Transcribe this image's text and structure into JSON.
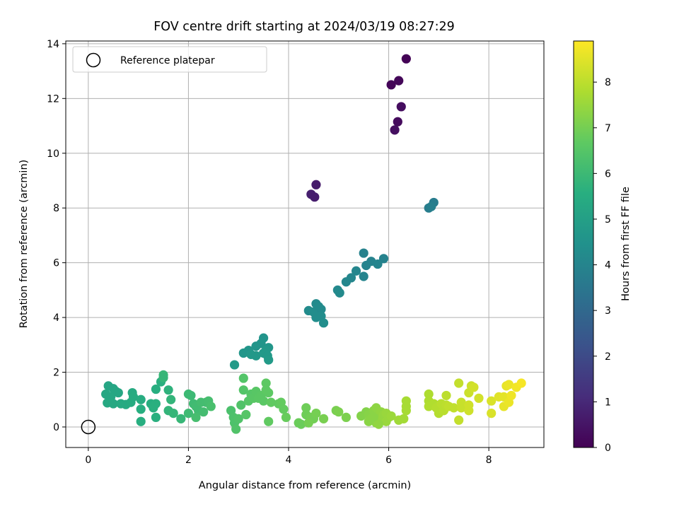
{
  "chart_data": {
    "type": "scatter",
    "title": "FOV centre drift starting at 2024/03/19 08:27:29",
    "xlabel": "Angular distance from reference (arcmin)",
    "ylabel": "Rotation from reference (arcmin)",
    "xlim": [
      -0.45,
      9.1
    ],
    "ylim": [
      -0.75,
      14.1
    ],
    "xticks": [
      0,
      2,
      4,
      6,
      8
    ],
    "yticks": [
      0,
      2,
      4,
      6,
      8,
      10,
      12,
      14
    ],
    "grid": true,
    "legend": {
      "placement": "top-left",
      "entries": [
        "Reference platepar"
      ]
    },
    "reference_point": {
      "x": 0,
      "y": 0,
      "label": "Reference platepar"
    },
    "colorbar": {
      "label": "Hours from first FF file",
      "colormap": "viridis",
      "range": [
        0,
        8.9
      ],
      "ticks": [
        0,
        1,
        2,
        3,
        4,
        5,
        6,
        7,
        8
      ]
    },
    "points": [
      {
        "x": 6.35,
        "y": 13.45,
        "t": 0.05
      },
      {
        "x": 6.2,
        "y": 12.65,
        "t": 0.15
      },
      {
        "x": 6.05,
        "y": 12.5,
        "t": 0.1
      },
      {
        "x": 6.25,
        "y": 11.7,
        "t": 0.3
      },
      {
        "x": 6.18,
        "y": 11.15,
        "t": 0.25
      },
      {
        "x": 6.12,
        "y": 10.85,
        "t": 0.35
      },
      {
        "x": 4.55,
        "y": 8.85,
        "t": 0.65
      },
      {
        "x": 4.45,
        "y": 8.5,
        "t": 0.75
      },
      {
        "x": 4.52,
        "y": 8.4,
        "t": 0.7
      },
      {
        "x": 6.9,
        "y": 8.2,
        "t": 3.7
      },
      {
        "x": 6.8,
        "y": 8.0,
        "t": 3.75
      },
      {
        "x": 6.85,
        "y": 8.05,
        "t": 3.8
      },
      {
        "x": 5.5,
        "y": 6.35,
        "t": 3.9
      },
      {
        "x": 5.65,
        "y": 6.05,
        "t": 3.95
      },
      {
        "x": 5.9,
        "y": 6.15,
        "t": 3.9
      },
      {
        "x": 5.55,
        "y": 5.9,
        "t": 3.95
      },
      {
        "x": 5.78,
        "y": 5.95,
        "t": 4.0
      },
      {
        "x": 5.35,
        "y": 5.7,
        "t": 4.05
      },
      {
        "x": 5.25,
        "y": 5.45,
        "t": 4.05
      },
      {
        "x": 5.5,
        "y": 5.5,
        "t": 4.0
      },
      {
        "x": 5.15,
        "y": 5.3,
        "t": 4.1
      },
      {
        "x": 4.98,
        "y": 5.0,
        "t": 4.15
      },
      {
        "x": 5.02,
        "y": 4.9,
        "t": 4.2
      },
      {
        "x": 4.55,
        "y": 4.5,
        "t": 4.2
      },
      {
        "x": 4.4,
        "y": 4.25,
        "t": 4.25
      },
      {
        "x": 4.5,
        "y": 4.2,
        "t": 4.3
      },
      {
        "x": 4.65,
        "y": 4.3,
        "t": 4.2
      },
      {
        "x": 4.6,
        "y": 4.4,
        "t": 4.25
      },
      {
        "x": 4.55,
        "y": 4.0,
        "t": 4.3
      },
      {
        "x": 4.65,
        "y": 4.05,
        "t": 4.3
      },
      {
        "x": 4.7,
        "y": 3.8,
        "t": 4.35
      },
      {
        "x": 3.5,
        "y": 3.25,
        "t": 4.55
      },
      {
        "x": 3.45,
        "y": 3.05,
        "t": 4.6
      },
      {
        "x": 3.35,
        "y": 2.95,
        "t": 4.6
      },
      {
        "x": 3.6,
        "y": 2.9,
        "t": 4.65
      },
      {
        "x": 3.55,
        "y": 2.8,
        "t": 4.7
      },
      {
        "x": 3.2,
        "y": 2.8,
        "t": 4.6
      },
      {
        "x": 3.1,
        "y": 2.7,
        "t": 4.65
      },
      {
        "x": 3.25,
        "y": 2.65,
        "t": 4.7
      },
      {
        "x": 3.35,
        "y": 2.6,
        "t": 4.7
      },
      {
        "x": 3.5,
        "y": 2.7,
        "t": 4.75
      },
      {
        "x": 3.58,
        "y": 2.6,
        "t": 4.75
      },
      {
        "x": 3.6,
        "y": 2.45,
        "t": 4.8
      },
      {
        "x": 2.92,
        "y": 2.27,
        "t": 4.8
      },
      {
        "x": 0.4,
        "y": 1.5,
        "t": 5.2
      },
      {
        "x": 0.5,
        "y": 1.4,
        "t": 5.2
      },
      {
        "x": 0.55,
        "y": 1.3,
        "t": 5.25
      },
      {
        "x": 0.35,
        "y": 1.2,
        "t": 5.3
      },
      {
        "x": 0.45,
        "y": 1.1,
        "t": 5.3
      },
      {
        "x": 0.6,
        "y": 1.25,
        "t": 5.25
      },
      {
        "x": 0.38,
        "y": 0.88,
        "t": 5.35
      },
      {
        "x": 0.5,
        "y": 0.85,
        "t": 5.35
      },
      {
        "x": 0.65,
        "y": 0.85,
        "t": 5.4
      },
      {
        "x": 0.75,
        "y": 0.82,
        "t": 5.4
      },
      {
        "x": 0.85,
        "y": 0.9,
        "t": 5.45
      },
      {
        "x": 0.88,
        "y": 1.25,
        "t": 5.4
      },
      {
        "x": 0.9,
        "y": 1.1,
        "t": 5.45
      },
      {
        "x": 1.05,
        "y": 1.0,
        "t": 5.5
      },
      {
        "x": 1.05,
        "y": 0.65,
        "t": 5.55
      },
      {
        "x": 1.05,
        "y": 0.2,
        "t": 5.55
      },
      {
        "x": 1.25,
        "y": 0.85,
        "t": 5.55
      },
      {
        "x": 1.3,
        "y": 0.7,
        "t": 5.6
      },
      {
        "x": 1.35,
        "y": 0.85,
        "t": 5.6
      },
      {
        "x": 1.35,
        "y": 0.35,
        "t": 5.6
      },
      {
        "x": 1.35,
        "y": 1.38,
        "t": 5.55
      },
      {
        "x": 1.45,
        "y": 1.65,
        "t": 5.6
      },
      {
        "x": 1.5,
        "y": 1.9,
        "t": 5.9
      },
      {
        "x": 1.5,
        "y": 1.8,
        "t": 5.85
      },
      {
        "x": 1.6,
        "y": 1.35,
        "t": 5.7
      },
      {
        "x": 1.6,
        "y": 0.6,
        "t": 5.8
      },
      {
        "x": 1.65,
        "y": 1.0,
        "t": 5.8
      },
      {
        "x": 1.7,
        "y": 0.5,
        "t": 5.85
      },
      {
        "x": 1.85,
        "y": 0.3,
        "t": 5.9
      },
      {
        "x": 2.0,
        "y": 1.2,
        "t": 6.0
      },
      {
        "x": 2.05,
        "y": 1.15,
        "t": 6.0
      },
      {
        "x": 2.0,
        "y": 0.5,
        "t": 6.05
      },
      {
        "x": 2.1,
        "y": 0.85,
        "t": 6.05
      },
      {
        "x": 2.15,
        "y": 0.75,
        "t": 6.1
      },
      {
        "x": 2.2,
        "y": 0.6,
        "t": 6.1
      },
      {
        "x": 2.25,
        "y": 0.9,
        "t": 6.15
      },
      {
        "x": 2.3,
        "y": 0.55,
        "t": 6.15
      },
      {
        "x": 2.35,
        "y": 0.9,
        "t": 6.15
      },
      {
        "x": 2.15,
        "y": 0.35,
        "t": 6.2
      },
      {
        "x": 2.4,
        "y": 0.95,
        "t": 6.2
      },
      {
        "x": 2.45,
        "y": 0.75,
        "t": 6.25
      },
      {
        "x": 2.85,
        "y": 0.6,
        "t": 6.3
      },
      {
        "x": 2.9,
        "y": 0.35,
        "t": 6.35
      },
      {
        "x": 2.92,
        "y": 0.15,
        "t": 6.35
      },
      {
        "x": 2.95,
        "y": -0.08,
        "t": 6.4
      },
      {
        "x": 3.0,
        "y": 0.3,
        "t": 6.4
      },
      {
        "x": 3.05,
        "y": 0.8,
        "t": 6.4
      },
      {
        "x": 3.1,
        "y": 1.78,
        "t": 6.45
      },
      {
        "x": 3.1,
        "y": 1.35,
        "t": 6.45
      },
      {
        "x": 3.15,
        "y": 0.45,
        "t": 6.5
      },
      {
        "x": 3.2,
        "y": 0.95,
        "t": 6.5
      },
      {
        "x": 3.25,
        "y": 1.2,
        "t": 6.5
      },
      {
        "x": 3.3,
        "y": 1.05,
        "t": 6.55
      },
      {
        "x": 3.35,
        "y": 1.3,
        "t": 6.55
      },
      {
        "x": 3.4,
        "y": 1.05,
        "t": 6.6
      },
      {
        "x": 3.45,
        "y": 1.15,
        "t": 6.6
      },
      {
        "x": 3.5,
        "y": 0.95,
        "t": 6.6
      },
      {
        "x": 3.55,
        "y": 1.6,
        "t": 6.65
      },
      {
        "x": 3.6,
        "y": 1.25,
        "t": 6.65
      },
      {
        "x": 3.55,
        "y": 1.35,
        "t": 6.65
      },
      {
        "x": 3.65,
        "y": 0.9,
        "t": 6.7
      },
      {
        "x": 3.6,
        "y": 0.2,
        "t": 6.7
      },
      {
        "x": 3.8,
        "y": 0.85,
        "t": 6.7
      },
      {
        "x": 3.85,
        "y": 0.9,
        "t": 6.75
      },
      {
        "x": 3.9,
        "y": 0.65,
        "t": 6.75
      },
      {
        "x": 3.95,
        "y": 0.35,
        "t": 6.8
      },
      {
        "x": 4.2,
        "y": 0.15,
        "t": 6.85
      },
      {
        "x": 4.25,
        "y": 0.1,
        "t": 6.85
      },
      {
        "x": 4.35,
        "y": 0.7,
        "t": 6.9
      },
      {
        "x": 4.35,
        "y": 0.45,
        "t": 6.9
      },
      {
        "x": 4.45,
        "y": 0.35,
        "t": 6.95
      },
      {
        "x": 4.5,
        "y": 0.3,
        "t": 6.95
      },
      {
        "x": 4.4,
        "y": 0.15,
        "t": 7.0
      },
      {
        "x": 4.55,
        "y": 0.5,
        "t": 7.0
      },
      {
        "x": 4.7,
        "y": 0.3,
        "t": 7.05
      },
      {
        "x": 4.95,
        "y": 0.6,
        "t": 7.05
      },
      {
        "x": 5.0,
        "y": 0.55,
        "t": 7.1
      },
      {
        "x": 5.15,
        "y": 0.35,
        "t": 7.1
      },
      {
        "x": 5.45,
        "y": 0.4,
        "t": 7.2
      },
      {
        "x": 5.55,
        "y": 0.55,
        "t": 7.2
      },
      {
        "x": 5.6,
        "y": 0.45,
        "t": 7.25
      },
      {
        "x": 5.65,
        "y": 0.3,
        "t": 7.3
      },
      {
        "x": 5.7,
        "y": 0.6,
        "t": 7.3
      },
      {
        "x": 5.75,
        "y": 0.7,
        "t": 7.35
      },
      {
        "x": 5.75,
        "y": 0.15,
        "t": 7.35
      },
      {
        "x": 5.8,
        "y": 0.4,
        "t": 7.4
      },
      {
        "x": 5.85,
        "y": 0.55,
        "t": 7.4
      },
      {
        "x": 5.85,
        "y": 0.25,
        "t": 7.45
      },
      {
        "x": 5.9,
        "y": 0.45,
        "t": 7.45
      },
      {
        "x": 5.95,
        "y": 0.5,
        "t": 7.5
      },
      {
        "x": 5.95,
        "y": 0.2,
        "t": 7.5
      },
      {
        "x": 6.0,
        "y": 0.35,
        "t": 7.5
      },
      {
        "x": 6.05,
        "y": 0.4,
        "t": 7.55
      },
      {
        "x": 5.7,
        "y": 0.35,
        "t": 7.3
      },
      {
        "x": 5.6,
        "y": 0.2,
        "t": 7.3
      },
      {
        "x": 5.8,
        "y": 0.1,
        "t": 7.4
      },
      {
        "x": 6.2,
        "y": 0.25,
        "t": 7.6
      },
      {
        "x": 6.3,
        "y": 0.3,
        "t": 7.65
      },
      {
        "x": 6.35,
        "y": 0.6,
        "t": 7.7
      },
      {
        "x": 6.35,
        "y": 0.75,
        "t": 7.7
      },
      {
        "x": 6.35,
        "y": 0.95,
        "t": 7.7
      },
      {
        "x": 6.8,
        "y": 1.2,
        "t": 7.8
      },
      {
        "x": 6.8,
        "y": 0.95,
        "t": 7.8
      },
      {
        "x": 6.8,
        "y": 0.75,
        "t": 7.85
      },
      {
        "x": 6.9,
        "y": 0.85,
        "t": 7.85
      },
      {
        "x": 6.95,
        "y": 0.7,
        "t": 7.9
      },
      {
        "x": 7.0,
        "y": 0.5,
        "t": 7.9
      },
      {
        "x": 7.05,
        "y": 0.85,
        "t": 7.95
      },
      {
        "x": 7.1,
        "y": 0.6,
        "t": 7.95
      },
      {
        "x": 7.15,
        "y": 0.8,
        "t": 8.0
      },
      {
        "x": 7.15,
        "y": 1.15,
        "t": 8.0
      },
      {
        "x": 7.2,
        "y": 0.75,
        "t": 8.05
      },
      {
        "x": 7.3,
        "y": 0.7,
        "t": 8.05
      },
      {
        "x": 7.4,
        "y": 1.6,
        "t": 8.1
      },
      {
        "x": 7.4,
        "y": 0.25,
        "t": 8.1
      },
      {
        "x": 7.45,
        "y": 0.9,
        "t": 8.15
      },
      {
        "x": 7.45,
        "y": 0.7,
        "t": 8.15
      },
      {
        "x": 7.6,
        "y": 1.25,
        "t": 8.2
      },
      {
        "x": 7.65,
        "y": 1.5,
        "t": 8.2
      },
      {
        "x": 7.6,
        "y": 0.6,
        "t": 8.25
      },
      {
        "x": 7.6,
        "y": 0.8,
        "t": 8.25
      },
      {
        "x": 7.7,
        "y": 1.45,
        "t": 8.3
      },
      {
        "x": 7.8,
        "y": 1.05,
        "t": 8.3
      },
      {
        "x": 8.05,
        "y": 0.5,
        "t": 8.4
      },
      {
        "x": 8.05,
        "y": 0.95,
        "t": 8.4
      },
      {
        "x": 8.2,
        "y": 1.1,
        "t": 8.5
      },
      {
        "x": 8.3,
        "y": 1.1,
        "t": 8.55
      },
      {
        "x": 8.35,
        "y": 1.5,
        "t": 8.6
      },
      {
        "x": 8.3,
        "y": 0.75,
        "t": 8.6
      },
      {
        "x": 8.4,
        "y": 1.55,
        "t": 8.65
      },
      {
        "x": 8.4,
        "y": 0.9,
        "t": 8.65
      },
      {
        "x": 8.45,
        "y": 1.15,
        "t": 8.7
      },
      {
        "x": 8.55,
        "y": 1.45,
        "t": 8.75
      },
      {
        "x": 8.65,
        "y": 1.6,
        "t": 8.8
      }
    ]
  }
}
